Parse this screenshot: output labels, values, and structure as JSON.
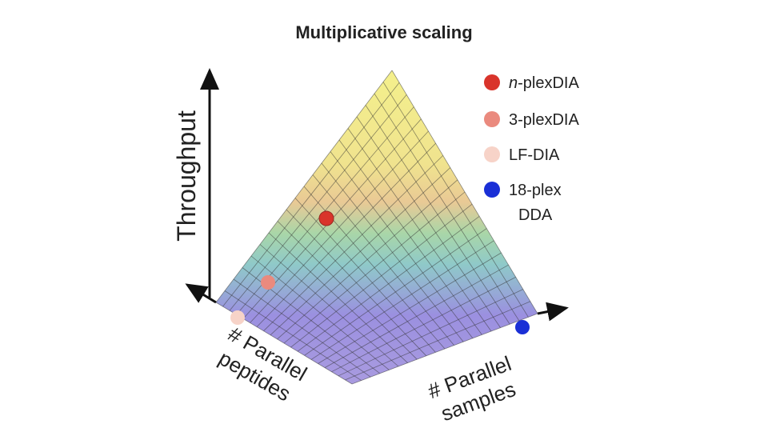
{
  "title": "Multiplicative scaling",
  "y_axis_label": "Throughput",
  "left_axis_label": {
    "line1": "# Parallel",
    "line2": "peptides"
  },
  "right_axis_label": {
    "line1": "# Parallel",
    "line2": "samples"
  },
  "legend": [
    {
      "italic": "n",
      "rest": "-plexDIA",
      "color": "#d9342b"
    },
    {
      "line1": "3-plexDIA",
      "color": "#ea8a7e"
    },
    {
      "line1": "LF-DIA",
      "color": "#f7d3c8"
    },
    {
      "line1": "18-plex",
      "line2": "DDA",
      "color": "#1a2fd6"
    }
  ]
}
